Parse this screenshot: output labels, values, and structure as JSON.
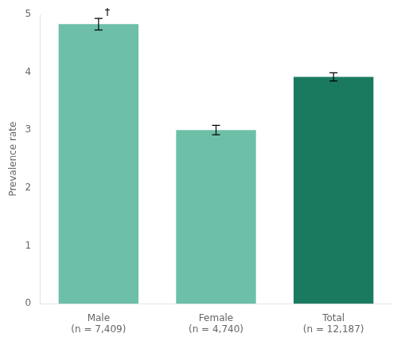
{
  "chart_data": {
    "type": "bar",
    "categories": [
      "Male\n(n = 7,409)",
      "Female\n(n = 4,740)",
      "Total\n(n = 12,187)"
    ],
    "values": [
      4.83,
      3.0,
      3.92
    ],
    "errors": [
      0.1,
      0.08,
      0.07
    ],
    "colors": [
      "#6dbfa8",
      "#6dbfa8",
      "#1a7a60"
    ],
    "ylabel": "Prevalence rate",
    "ylim": [
      0,
      5
    ],
    "yticks": [
      0,
      1,
      2,
      3,
      4,
      5
    ],
    "grid": false,
    "annotations": [
      {
        "text": "†",
        "category": "Male\n(n = 7,409)"
      }
    ]
  }
}
